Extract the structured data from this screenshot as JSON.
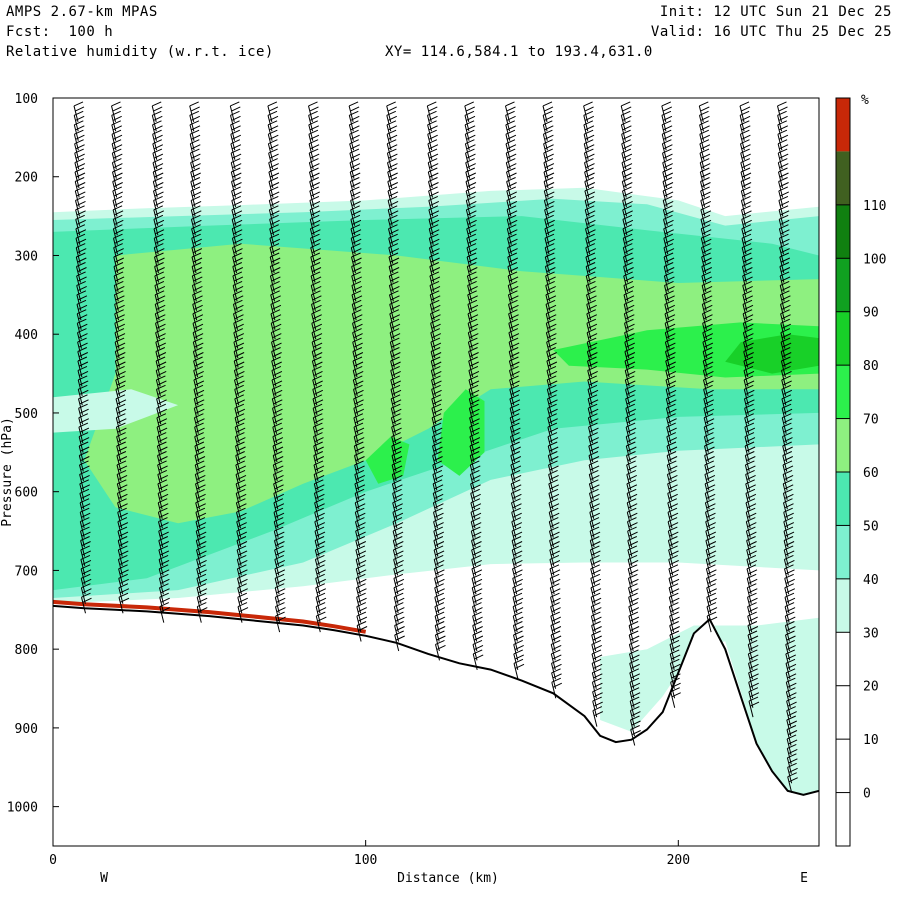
{
  "header": {
    "model": "AMPS 2.67-km MPAS",
    "forecast": "Fcst:  100 h",
    "field": "Relative humidity (w.r.t. ice)",
    "xy_range": "XY= 114.6,584.1 to 193.4,631.0",
    "init": "Init: 12 UTC Sun 21 Dec 25",
    "valid": "Valid: 16 UTC Thu 25 Dec 25"
  },
  "chart_data": {
    "type": "heatmap",
    "title": "Relative humidity (w.r.t. ice)",
    "xlabel": "Distance (km)",
    "ylabel": "Pressure (hPa)",
    "xlim": [
      0,
      245
    ],
    "ylim": [
      1050,
      100
    ],
    "x_ticks": [
      0,
      100,
      200
    ],
    "y_ticks": [
      100,
      200,
      300,
      400,
      500,
      600,
      700,
      800,
      900,
      1000
    ],
    "x_end_labels": {
      "left": "W",
      "right": "E"
    },
    "colorbar": {
      "unit": "%",
      "levels": [
        0,
        10,
        20,
        30,
        40,
        50,
        60,
        70,
        80,
        90,
        100,
        110
      ],
      "colors": [
        "#ffffff",
        "#ffffff",
        "#ffffff",
        "#ffffff",
        "#c8fae8",
        "#7ef0d0",
        "#4ce8b0",
        "#8ef080",
        "#2cf04c",
        "#18d028",
        "#10a020",
        "#108010",
        "#406020",
        "#c82808"
      ]
    },
    "terrain_profile": {
      "distance_km": [
        0,
        10,
        20,
        30,
        40,
        50,
        60,
        70,
        80,
        90,
        100,
        110,
        120,
        130,
        140,
        150,
        160,
        170,
        175,
        180,
        185,
        190,
        195,
        200,
        205,
        210,
        215,
        220,
        225,
        230,
        235,
        240,
        245
      ],
      "pressure_hpa": [
        745,
        748,
        750,
        752,
        755,
        758,
        762,
        766,
        770,
        776,
        783,
        792,
        806,
        818,
        826,
        840,
        856,
        885,
        910,
        918,
        915,
        902,
        880,
        830,
        780,
        762,
        800,
        860,
        920,
        955,
        980,
        985,
        980
      ]
    },
    "wind_barb_columns_km": [
      8,
      20,
      33,
      45,
      58,
      70,
      83,
      96,
      108,
      121,
      133,
      146,
      158,
      171,
      183,
      196,
      208,
      221,
      233
    ]
  }
}
